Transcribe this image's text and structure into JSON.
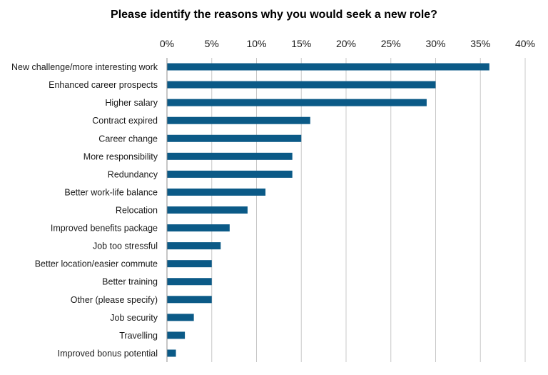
{
  "chart_data": {
    "type": "bar",
    "orientation": "horizontal",
    "title": "Please identify the reasons why you would seek a new role?",
    "xlabel": "",
    "ylabel": "",
    "x_axis_position": "top",
    "xlim": [
      0,
      40
    ],
    "x_ticks": [
      0,
      5,
      10,
      15,
      20,
      25,
      30,
      35,
      40
    ],
    "x_tick_labels": [
      "0%",
      "5%",
      "10%",
      "15%",
      "20%",
      "25%",
      "30%",
      "35%",
      "40%"
    ],
    "grid": true,
    "legend": "none",
    "bar_color": "#0b5a87",
    "grid_color": "#c8c8c8",
    "categories": [
      "New challenge/more interesting work",
      "Enhanced career prospects",
      "Higher salary",
      "Contract expired",
      "Career change",
      "More responsibility",
      "Redundancy",
      "Better work-life balance",
      "Relocation",
      "Improved benefits package",
      "Job too stressful",
      "Better location/easier commute",
      "Better training",
      "Other (please specify)",
      "Job security",
      "Travelling",
      "Improved bonus potential"
    ],
    "values": [
      36,
      30,
      29,
      16,
      15,
      14,
      14,
      11,
      9,
      7,
      6,
      5,
      5,
      5,
      3,
      2,
      1
    ]
  }
}
